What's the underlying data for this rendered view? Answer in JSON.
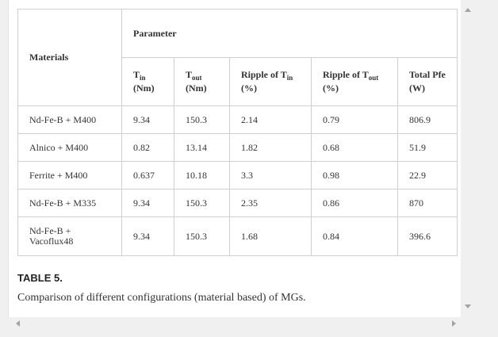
{
  "table": {
    "materials_header": "Materials",
    "parameter_header": "Parameter",
    "columns": [
      {
        "main": "T",
        "sub": "in",
        "unit": "(Nm)"
      },
      {
        "main": "T",
        "sub": "out",
        "unit": "(Nm)"
      },
      {
        "main": "Ripple of T",
        "sub": "in",
        "unit": "(%)"
      },
      {
        "main": "Ripple of T",
        "sub": "out",
        "unit": "(%)"
      },
      {
        "main": "Total Pfe",
        "sub": "",
        "unit": "(W)"
      }
    ],
    "rows": [
      {
        "material": "Nd-Fe-B + M400",
        "material2": "",
        "values": [
          "9.34",
          "150.3",
          "2.14",
          "0.79",
          "806.9"
        ]
      },
      {
        "material": "Alnico + M400",
        "material2": "",
        "values": [
          "0.82",
          "13.14",
          "1.82",
          "0.68",
          "51.9"
        ]
      },
      {
        "material": "Ferrite + M400",
        "material2": "",
        "values": [
          "0.637",
          "10.18",
          "3.3",
          "0.98",
          "22.9"
        ]
      },
      {
        "material": "Nd-Fe-B + M335",
        "material2": "",
        "values": [
          "9.34",
          "150.3",
          "2.35",
          "0.86",
          "870"
        ]
      },
      {
        "material": "Nd-Fe-B +",
        "material2": "Vacoflux48",
        "values": [
          "9.34",
          "150.3",
          "1.68",
          "0.84",
          "396.6"
        ]
      }
    ]
  },
  "caption": {
    "title": "TABLE 5.",
    "text": "Comparison of different configurations (material based) of MGs."
  }
}
